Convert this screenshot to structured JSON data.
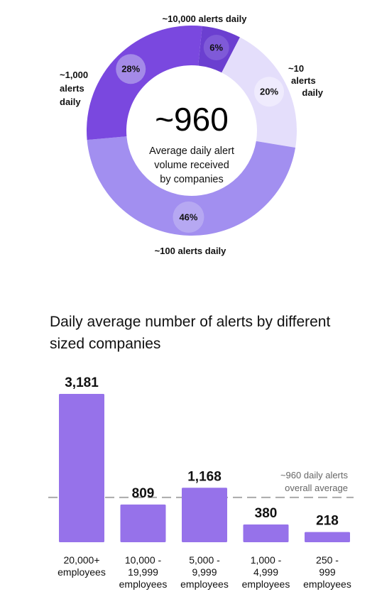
{
  "chart_data": [
    {
      "type": "pie",
      "variant": "donut",
      "center_value": "~960",
      "center_caption_lines": [
        "Average daily alert",
        "volume received",
        "by companies"
      ],
      "slices": [
        {
          "label_lines": [
            "~10,000 alerts daily"
          ],
          "percent_label": "6%",
          "value": 6,
          "color": "#6b3fd0",
          "badge_color": "#7f5ad8"
        },
        {
          "label_lines": [
            "~10",
            "alerts",
            "daily"
          ],
          "percent_label": "20%",
          "value": 20,
          "color": "#e4defb",
          "badge_color": "#efebfd"
        },
        {
          "label_lines": [
            "~100 alerts daily"
          ],
          "percent_label": "46%",
          "value": 46,
          "color": "#a28ff0",
          "badge_color": "#b6a8f2"
        },
        {
          "label_lines": [
            "~1,000",
            "alerts",
            "daily"
          ],
          "percent_label": "28%",
          "value": 28,
          "color": "#7a48df",
          "badge_color": "#a48ae8"
        }
      ]
    },
    {
      "type": "bar",
      "title_lines": [
        "Daily average number of alerts by different",
        "sized companies"
      ],
      "categories": [
        [
          "20,000+",
          "employees"
        ],
        [
          "10,000 -",
          "19,999",
          "employees"
        ],
        [
          "5,000 -",
          "9,999",
          "employees"
        ],
        [
          "1,000 -",
          "4,999",
          "employees"
        ],
        [
          "250 -",
          "999",
          "employees"
        ]
      ],
      "values": [
        3181,
        809,
        1168,
        380,
        218
      ],
      "value_labels": [
        "3,181",
        "809",
        "1,168",
        "380",
        "218"
      ],
      "bar_color": "#9672ea",
      "reference_line": {
        "value": 960,
        "label_lines": [
          "~960 daily alerts",
          "overall average"
        ],
        "style": "dashed",
        "color": "#aaaaaa"
      },
      "ylim": [
        0,
        3181
      ],
      "grid": false
    }
  ]
}
